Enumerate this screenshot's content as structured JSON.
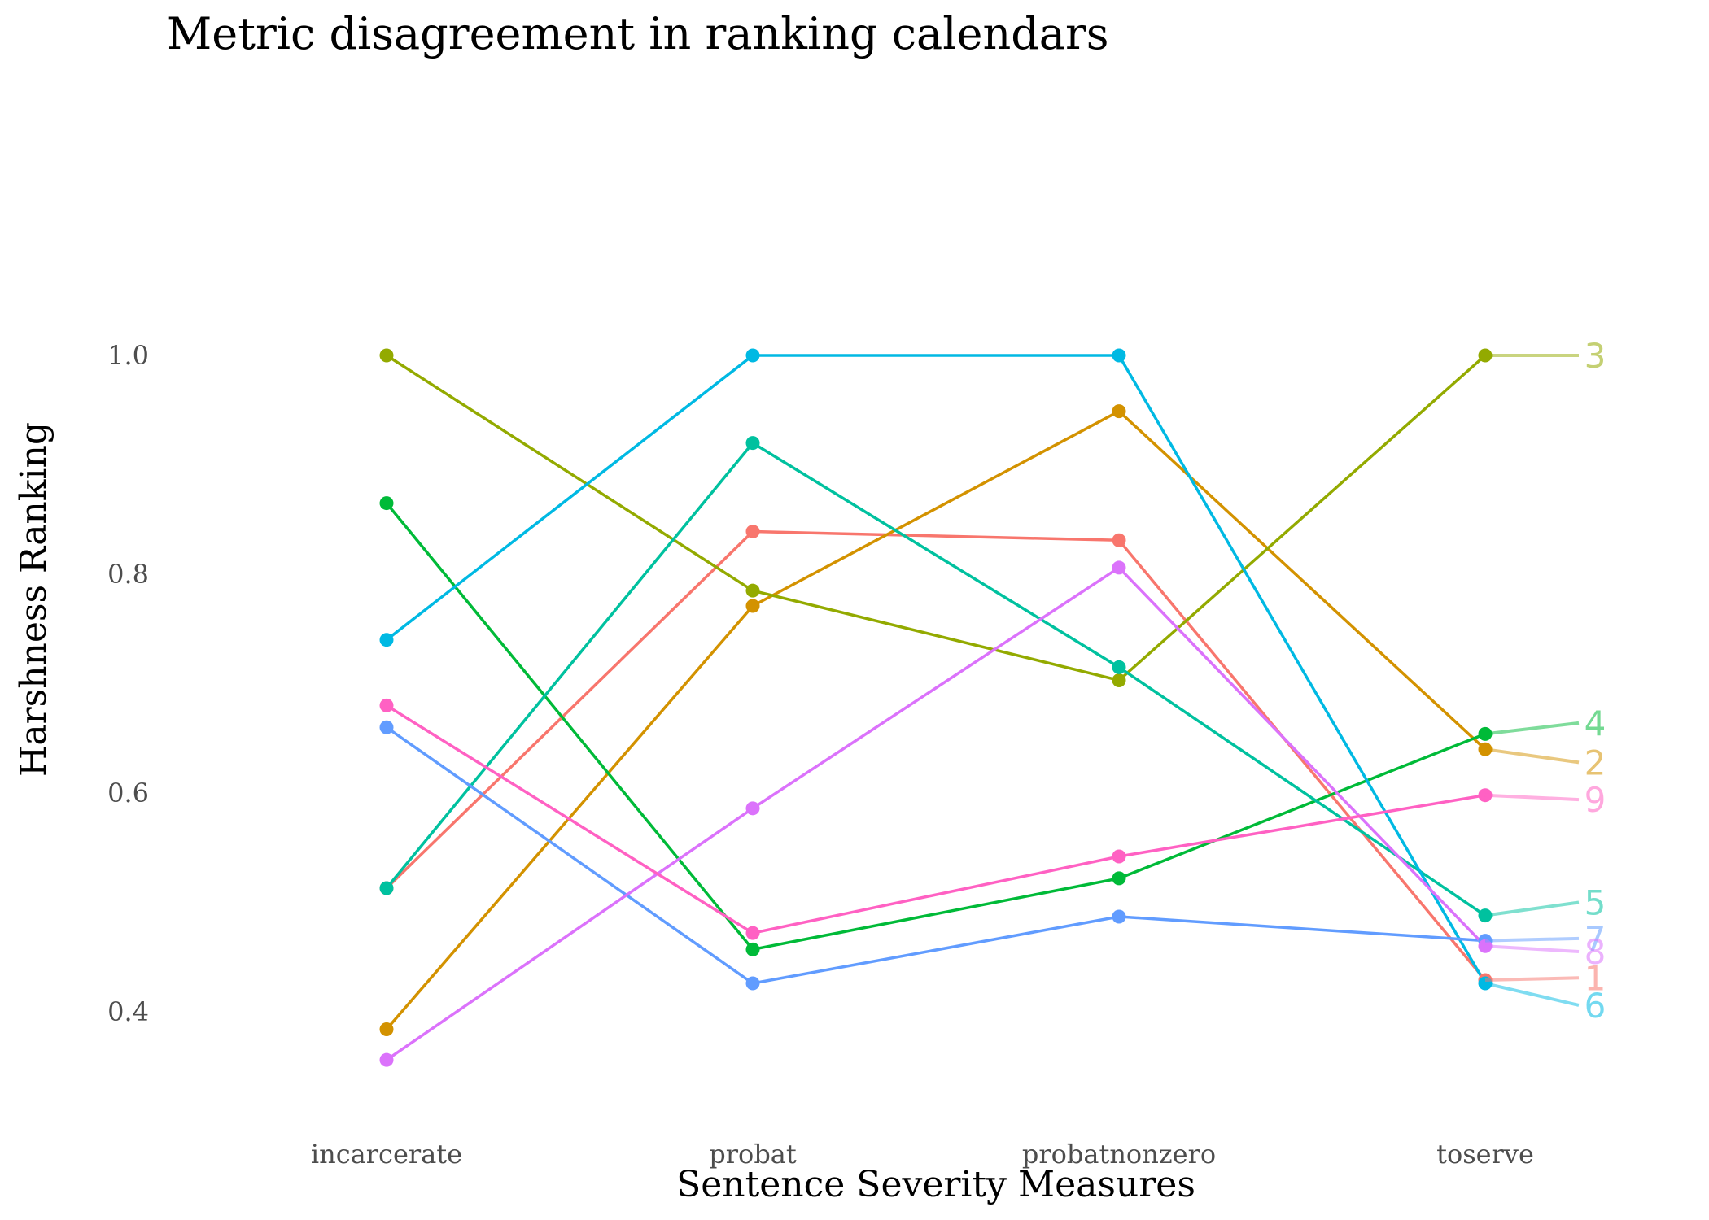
{
  "chart_data": {
    "type": "line",
    "title": "Metric disagreement in ranking calendars",
    "xlabel": "Sentence Severity Measures",
    "ylabel": "Harshness Ranking",
    "categories": [
      "incarcerate",
      "probat",
      "probatnonzero",
      "toserve"
    ],
    "ylim": [
      0.33,
      1.03
    ],
    "yticks": [
      0.4,
      0.6,
      0.8,
      1.0
    ],
    "ytick_labels": [
      "0.4",
      "0.6",
      "0.8",
      "1.0"
    ],
    "grid": false,
    "legend": "none (series labels at right end)",
    "series": [
      {
        "name": "1",
        "color": "#F8766D",
        "values": [
          0.513,
          0.839,
          0.831,
          0.429
        ],
        "label_value": 0.431
      },
      {
        "name": "2",
        "color": "#D39200",
        "values": [
          0.384,
          0.771,
          0.949,
          0.64
        ],
        "label_value": 0.628
      },
      {
        "name": "3",
        "color": "#93AA00",
        "values": [
          1.0,
          0.785,
          0.703,
          1.0
        ],
        "label_value": 1.0
      },
      {
        "name": "4",
        "color": "#00BA38",
        "values": [
          0.865,
          0.457,
          0.522,
          0.654
        ],
        "label_value": 0.664
      },
      {
        "name": "5",
        "color": "#00C19F",
        "values": [
          0.513,
          0.92,
          0.715,
          0.488
        ],
        "label_value": 0.5
      },
      {
        "name": "6",
        "color": "#00B9E3",
        "values": [
          0.74,
          1.0,
          1.0,
          0.426
        ],
        "label_value": 0.406
      },
      {
        "name": "7",
        "color": "#619CFF",
        "values": [
          0.66,
          0.426,
          0.487,
          0.465
        ],
        "label_value": 0.467
      },
      {
        "name": "8",
        "color": "#DB72FB",
        "values": [
          0.356,
          0.586,
          0.806,
          0.46
        ],
        "label_value": 0.455
      },
      {
        "name": "9",
        "color": "#FF61C3",
        "values": [
          0.68,
          0.472,
          0.542,
          0.598
        ],
        "label_value": 0.594
      }
    ]
  }
}
